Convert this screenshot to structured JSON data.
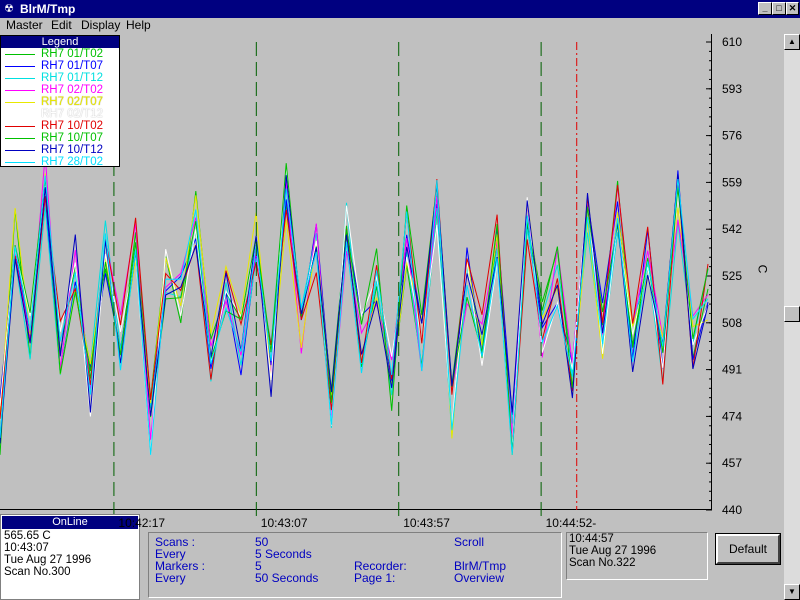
{
  "window": {
    "title": "BlrM/Tmp",
    "app_icon": "recorder-icon",
    "min_label": "_",
    "max_label": "□",
    "close_label": "✕"
  },
  "menu": {
    "items": [
      "Master",
      "Edit",
      "Display",
      "Help"
    ]
  },
  "legend": {
    "title": "Legend",
    "items": [
      {
        "label": "RH7 01/T02",
        "color": "#00c000"
      },
      {
        "label": "RH7 01/T07",
        "color": "#0000ff"
      },
      {
        "label": "RH7 01/T12",
        "color": "#00e0e0"
      },
      {
        "label": "RH7 02/T02",
        "color": "#ff00ff"
      },
      {
        "label": "RH7 02/T07",
        "color": "#e8e800"
      },
      {
        "label": "RH7 02/T12",
        "color": "#ffffff"
      },
      {
        "label": "RH7 10/T02",
        "color": "#e00000"
      },
      {
        "label": "RH7 10/T07",
        "color": "#00c000"
      },
      {
        "label": "RH7 10/T12",
        "color": "#0000c0"
      },
      {
        "label": "RH7 28/T02",
        "color": "#00e0ff"
      }
    ]
  },
  "y_axis_unit": "C",
  "chart_data": {
    "type": "line",
    "ylim": [
      440,
      610
    ],
    "yticks": [
      610,
      593,
      576,
      559,
      542,
      525,
      508,
      491,
      474,
      457,
      440
    ],
    "x_labels": [
      "10:42:17",
      "10:43:07",
      "10:43:57",
      "10:44:52-"
    ],
    "x_label_positions": [
      0.2,
      0.4,
      0.6,
      0.8
    ],
    "marker_positions": [
      0.16,
      0.36,
      0.56,
      0.76
    ],
    "cursor_position": 0.81,
    "series_count": 10,
    "base_values": [
      470,
      540,
      505,
      560,
      500,
      530,
      485,
      535,
      500,
      540,
      470,
      525,
      515,
      545,
      495,
      520,
      500,
      540,
      490,
      555,
      505,
      535,
      480,
      545,
      500,
      525,
      485,
      540,
      500,
      550,
      475,
      525,
      500,
      540,
      465,
      545,
      505,
      525,
      490,
      545,
      505,
      550,
      500,
      535,
      495,
      555,
      500,
      520
    ],
    "grid": false
  },
  "status_left": {
    "header": "OnLine",
    "lines": [
      "565.65 C",
      "10:43:07",
      "Tue Aug 27 1996",
      "Scan No.300"
    ]
  },
  "status_mid": {
    "scans_label": "Scans :",
    "scans_value": "50",
    "every1_label": "Every",
    "every1_value": "5 Seconds",
    "markers_label": "Markers :",
    "markers_value": "5",
    "every2_label": "Every",
    "every2_value": "50 Seconds",
    "mode": "Scroll",
    "recorder_label": "Recorder:",
    "recorder_value": "BlrM/Tmp",
    "page_label": "Page  1:",
    "page_value": "Overview"
  },
  "status_right": {
    "lines": [
      "10:44:57",
      "Tue Aug 27 1996",
      "Scan No.322"
    ]
  },
  "default_button": "Default"
}
